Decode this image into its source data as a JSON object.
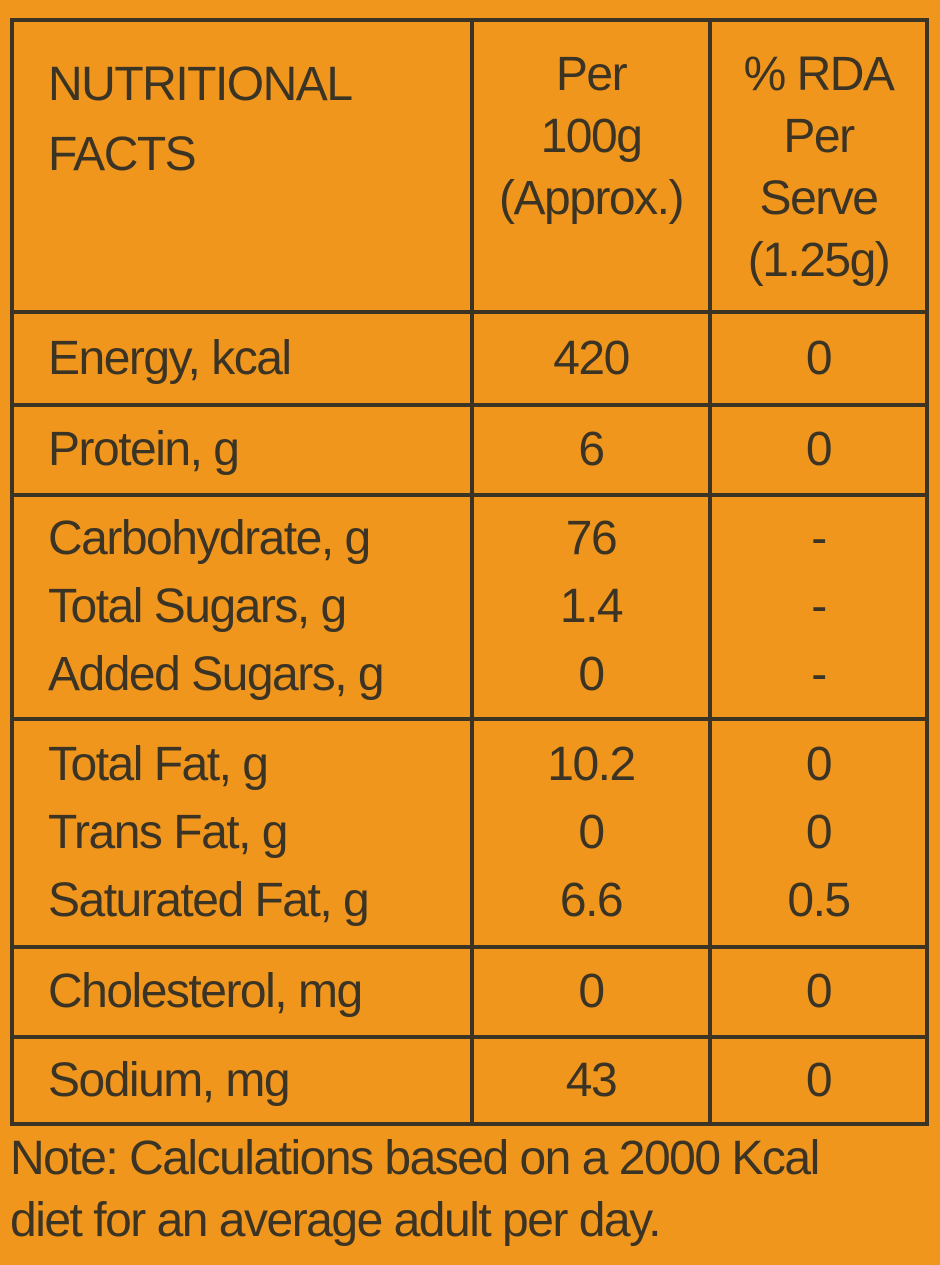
{
  "table": {
    "header": {
      "nutrient": [
        "NUTRITIONAL",
        "FACTS"
      ],
      "per100": [
        "Per",
        "100g",
        "(Approx.)"
      ],
      "rda": [
        "% RDA",
        "Per",
        "Serve",
        "(1.25g)"
      ]
    },
    "rows": [
      [
        {
          "nutrient": "Energy, kcal",
          "per100": "420",
          "rda": "0"
        }
      ],
      [
        {
          "nutrient": "Protein, g",
          "per100": "6",
          "rda": "0"
        }
      ],
      [
        {
          "nutrient": "Carbohydrate, g",
          "per100": "76",
          "rda": "-"
        },
        {
          "nutrient": "Total Sugars, g",
          "per100": "1.4",
          "rda": "-"
        },
        {
          "nutrient": "Added Sugars, g",
          "per100": "0",
          "rda": "-"
        }
      ],
      [
        {
          "nutrient": "Total Fat, g",
          "per100": "10.2",
          "rda": "0"
        },
        {
          "nutrient": "Trans Fat, g",
          "per100": "0",
          "rda": "0"
        },
        {
          "nutrient": "Saturated Fat, g",
          "per100": "6.6",
          "rda": "0.5"
        }
      ],
      [
        {
          "nutrient": "Cholesterol, mg",
          "per100": "0",
          "rda": "0"
        }
      ],
      [
        {
          "nutrient": "Sodium, mg",
          "per100": "43",
          "rda": "0"
        }
      ]
    ]
  },
  "note": [
    "Note: Calculations based on a 2000 Kcal",
    "diet for an average adult per day."
  ]
}
